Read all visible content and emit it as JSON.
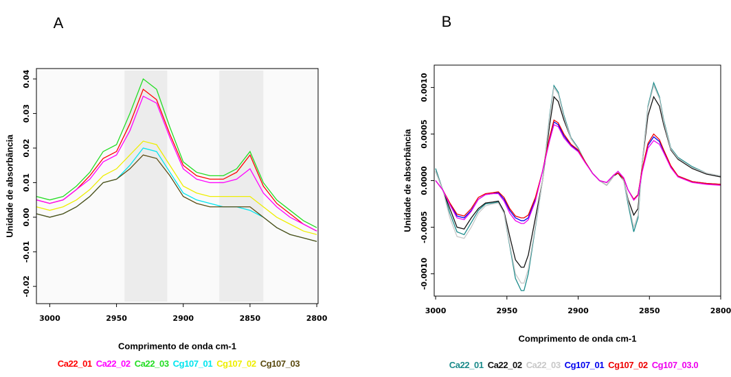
{
  "chart_data": [
    {
      "type": "line",
      "title": "A",
      "xlabel": "Comprimento de onda cm-1",
      "ylabel": "Unidade de absorbância",
      "x": [
        3010,
        3000,
        2990,
        2980,
        2970,
        2960,
        2950,
        2940,
        2930,
        2920,
        2910,
        2900,
        2890,
        2880,
        2870,
        2860,
        2850,
        2840,
        2830,
        2820,
        2810,
        2800
      ],
      "xlim": [
        3010,
        2799
      ],
      "xticks": [
        3000,
        2950,
        2900,
        2850,
        2800
      ],
      "ylim": [
        -0.025,
        0.043
      ],
      "yticks": [
        -0.02,
        -0.01,
        {
          "value": 0,
          "label": "0.00"
        },
        0.01,
        0.02,
        0.03,
        0.04
      ],
      "highlight_ranges": [
        [
          2944,
          2912
        ],
        [
          2873,
          2840
        ]
      ],
      "series": [
        {
          "name": "Ca22_01",
          "color": "#ff0000",
          "values": [
            0.005,
            0.004,
            0.005,
            0.008,
            0.012,
            0.017,
            0.019,
            0.027,
            0.037,
            0.034,
            0.024,
            0.015,
            0.012,
            0.011,
            0.011,
            0.013,
            0.018,
            0.009,
            0.004,
            0.001,
            -0.002,
            -0.004
          ]
        },
        {
          "name": "Ca22_02",
          "color": "#ff00ff",
          "values": [
            0.005,
            0.004,
            0.005,
            0.008,
            0.011,
            0.016,
            0.018,
            0.025,
            0.035,
            0.033,
            0.023,
            0.014,
            0.011,
            0.01,
            0.01,
            0.011,
            0.014,
            0.007,
            0.003,
            0.0,
            -0.002,
            -0.004
          ]
        },
        {
          "name": "Ca22_03",
          "color": "#22dd22",
          "values": [
            0.006,
            0.005,
            0.006,
            0.009,
            0.013,
            0.019,
            0.021,
            0.03,
            0.04,
            0.037,
            0.026,
            0.016,
            0.013,
            0.012,
            0.012,
            0.014,
            0.019,
            0.01,
            0.005,
            0.002,
            -0.001,
            -0.003
          ]
        },
        {
          "name": "Cg107_01",
          "color": "#00e5ee",
          "values": [
            0.001,
            0.0,
            0.001,
            0.003,
            0.006,
            0.01,
            0.011,
            0.015,
            0.02,
            0.019,
            0.013,
            0.007,
            0.005,
            0.004,
            0.003,
            0.003,
            0.002,
            0.0,
            -0.003,
            -0.005,
            -0.006,
            -0.007
          ]
        },
        {
          "name": "Cg107_02",
          "color": "#eeee00",
          "values": [
            0.003,
            0.002,
            0.003,
            0.005,
            0.008,
            0.012,
            0.014,
            0.018,
            0.022,
            0.021,
            0.015,
            0.009,
            0.007,
            0.006,
            0.006,
            0.006,
            0.006,
            0.003,
            0.0,
            -0.002,
            -0.004,
            -0.005
          ]
        },
        {
          "name": "Cg107_03",
          "color": "#5a4a10",
          "values": [
            0.001,
            0.0,
            0.001,
            0.003,
            0.006,
            0.01,
            0.011,
            0.014,
            0.018,
            0.017,
            0.012,
            0.006,
            0.004,
            0.003,
            0.003,
            0.003,
            0.003,
            0.0,
            -0.003,
            -0.005,
            -0.006,
            -0.007
          ]
        }
      ]
    },
    {
      "type": "line",
      "title": "B",
      "xlabel": "Comprimento de onda cm-1",
      "ylabel": "Unidade de absorbância",
      "x": [
        3000,
        2995,
        2990,
        2985,
        2980,
        2975,
        2970,
        2965,
        2960,
        2956,
        2952,
        2948,
        2944,
        2940,
        2938,
        2935,
        2930,
        2925,
        2920,
        2917,
        2914,
        2910,
        2905,
        2900,
        2895,
        2890,
        2885,
        2880,
        2875,
        2872,
        2868,
        2865,
        2861,
        2858,
        2855,
        2851,
        2847,
        2843,
        2840,
        2835,
        2830,
        2820,
        2810,
        2800
      ],
      "xlim": [
        3001,
        2800
      ],
      "xticks": [
        3000,
        2950,
        2900,
        2850,
        2800
      ],
      "ylim": [
        -0.00124,
        0.00124
      ],
      "yticks": [
        {
          "value": -0.001,
          "label": "-0.0010"
        },
        -0.0005,
        {
          "value": 0,
          "label": "0.0000"
        },
        0.0005,
        {
          "value": 0.001,
          "label": "0.0010"
        }
      ],
      "series": [
        {
          "name": "Ca22_01",
          "color": "#1a8a8a",
          "values": [
            0.00013,
            -0.0001,
            -0.00035,
            -0.00055,
            -0.00058,
            -0.00045,
            -0.00032,
            -0.00025,
            -0.00024,
            -0.00023,
            -0.00035,
            -0.0007,
            -0.00105,
            -0.00118,
            -0.00118,
            -0.001,
            -0.0005,
            0,
            0.0007,
            0.00102,
            0.00095,
            0.0007,
            0.00046,
            0.00035,
            0.0002,
            8e-05,
            0,
            -5e-05,
            5e-05,
            0.0001,
            0,
            -0.00025,
            -0.00055,
            -0.0004,
            0.0002,
            0.0008,
            0.00105,
            0.0009,
            0.00065,
            0.00035,
            0.00025,
            0.00015,
            8e-05,
            5e-05
          ]
        },
        {
          "name": "Ca22_02",
          "color": "#111111",
          "values": [
            0.0001,
            -0.0001,
            -0.0003,
            -0.0005,
            -0.00052,
            -0.0004,
            -0.0003,
            -0.00024,
            -0.00023,
            -0.00022,
            -0.00033,
            -0.0006,
            -0.00085,
            -0.00093,
            -0.00093,
            -0.0008,
            -0.0004,
            0,
            0.0006,
            0.0009,
            0.00085,
            0.00065,
            0.00045,
            0.00034,
            0.0002,
            8e-05,
            0,
            -5e-05,
            5e-05,
            8e-05,
            0,
            -0.0002,
            -0.00037,
            -0.0003,
            0.0002,
            0.0007,
            0.0009,
            0.0008,
            0.0006,
            0.00033,
            0.00023,
            0.00013,
            7e-05,
            4e-05
          ]
        },
        {
          "name": "Ca22_03",
          "color": "#c8c8c8",
          "values": [
            0.0001,
            -0.0001,
            -0.0004,
            -0.0006,
            -0.00062,
            -0.0005,
            -0.00035,
            -0.00027,
            -0.00025,
            -0.00024,
            -0.00035,
            -0.00068,
            -0.001,
            -0.0011,
            -0.0011,
            -0.00095,
            -0.00048,
            0,
            0.00068,
            0.001,
            0.00093,
            0.00068,
            0.00045,
            0.00034,
            0.0002,
            8e-05,
            0,
            -5e-05,
            5e-05,
            0.0001,
            0,
            -0.00022,
            -0.0005,
            -0.00037,
            0.0002,
            0.00078,
            0.00102,
            0.00088,
            0.00063,
            0.00034,
            0.00024,
            0.00014,
            8e-05,
            5e-05
          ]
        },
        {
          "name": "Cg107_01",
          "color": "#0000ee",
          "values": [
            0,
            -0.0001,
            -0.00025,
            -0.00038,
            -0.0004,
            -0.00032,
            -0.0002,
            -0.00015,
            -0.00014,
            -0.00013,
            -0.0002,
            -0.00032,
            -0.0004,
            -0.00043,
            -0.00043,
            -0.0004,
            -0.0002,
            0.0001,
            0.00045,
            0.00063,
            0.0006,
            0.00048,
            0.00038,
            0.00032,
            0.0002,
            8e-05,
            0,
            -2e-05,
            6e-05,
            8e-05,
            2e-05,
            -0.0001,
            -0.0002,
            -0.00015,
            0.00012,
            0.00038,
            0.00047,
            0.00042,
            0.00032,
            0.00015,
            5e-05,
            -1e-05,
            -3e-05,
            -4e-05
          ]
        },
        {
          "name": "Cg107_02",
          "color": "#ee0000",
          "values": [
            0,
            -0.0001,
            -0.00024,
            -0.00036,
            -0.00038,
            -0.0003,
            -0.00018,
            -0.00014,
            -0.00013,
            -0.00012,
            -0.00018,
            -0.0003,
            -0.00038,
            -0.0004,
            -0.0004,
            -0.00037,
            -0.00018,
            0.0001,
            0.00047,
            0.00065,
            0.00062,
            0.0005,
            0.00039,
            0.00033,
            0.0002,
            8e-05,
            0,
            -2e-05,
            6e-05,
            8e-05,
            2e-05,
            -0.0001,
            -0.0002,
            -0.00015,
            0.00013,
            0.0004,
            0.0005,
            0.00044,
            0.00033,
            0.00016,
            5e-05,
            -1e-05,
            -3e-05,
            -4e-05
          ]
        },
        {
          "name": "Cg107_03.0",
          "color": "#ee00ee",
          "values": [
            0,
            -0.0001,
            -0.00026,
            -0.0004,
            -0.00042,
            -0.00033,
            -0.0002,
            -0.00015,
            -0.00014,
            -0.00014,
            -0.00022,
            -0.00035,
            -0.00043,
            -0.00046,
            -0.00046,
            -0.00042,
            -0.00022,
            0.0001,
            0.00043,
            0.0006,
            0.00058,
            0.00046,
            0.00037,
            0.00031,
            0.00019,
            8e-05,
            0,
            -2e-05,
            6e-05,
            0.0001,
            3e-05,
            -0.0001,
            -0.00021,
            -0.00016,
            0.0001,
            0.00035,
            0.00043,
            0.00039,
            0.0003,
            0.00014,
            4e-05,
            -2e-05,
            -4e-05,
            -5e-05
          ]
        }
      ]
    }
  ]
}
